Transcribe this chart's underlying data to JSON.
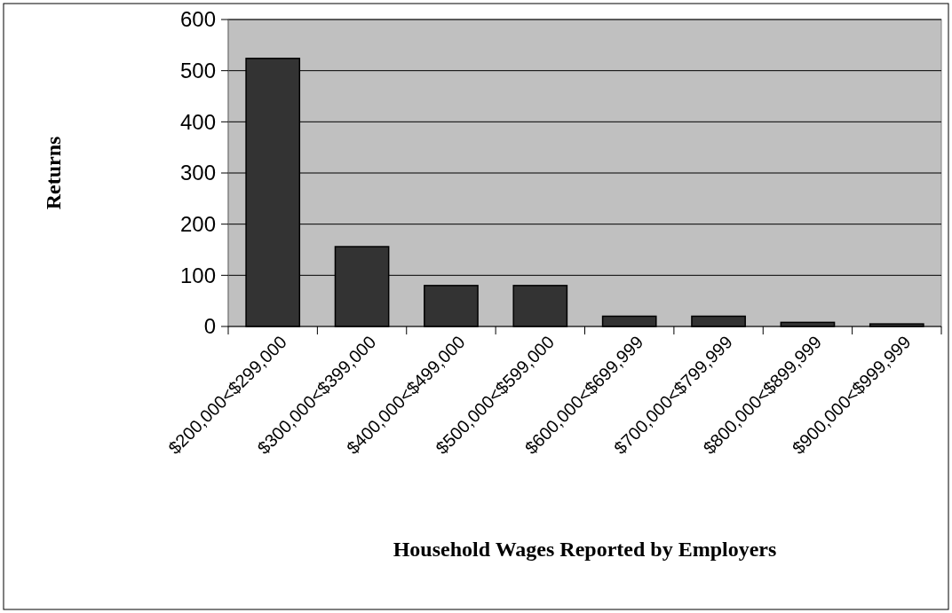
{
  "chart_data": {
    "type": "bar",
    "xlabel": "Household Wages Reported by Employers",
    "ylabel": "Returns",
    "categories": [
      "$200,000<$299,000",
      "$300,000<$399,000",
      "$400,000<$499,000",
      "$500,000<$599,000",
      "$600,000<$699,999",
      "$700,000<$799,999",
      "$800,000<$899,999",
      "$900,000<$999,999"
    ],
    "values": [
      524,
      156,
      80,
      80,
      20,
      20,
      8,
      5
    ],
    "color": "#333333",
    "ylim": [
      0,
      600
    ],
    "yticks": [
      0,
      100,
      200,
      300,
      400,
      500,
      600
    ],
    "grid": "y"
  }
}
